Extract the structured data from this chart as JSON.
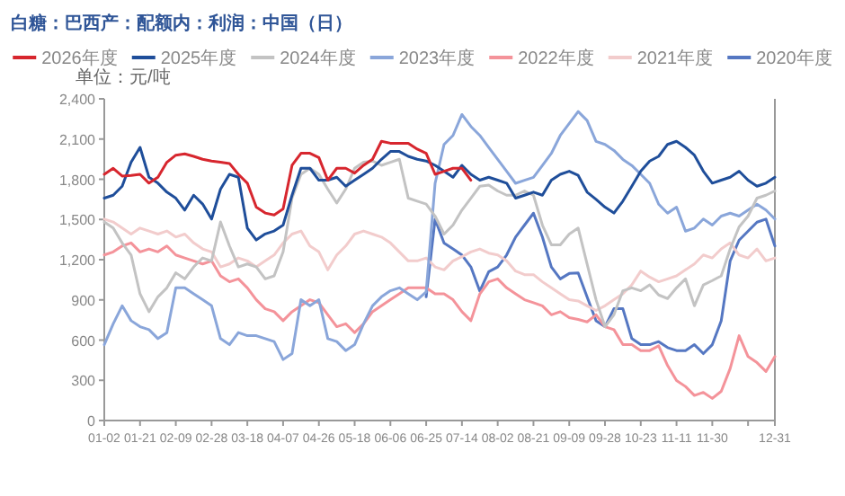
{
  "chart_data": {
    "type": "line",
    "title": "白糖：巴西产：配额内：利润：中国（日）",
    "ylabel": "单位：元/吨",
    "legend": "top",
    "categories": [
      "01-02",
      null,
      null,
      null,
      "01-21",
      null,
      null,
      null,
      "02-09",
      null,
      null,
      null,
      "02-28",
      null,
      null,
      null,
      "03-18",
      null,
      null,
      null,
      "04-07",
      null,
      null,
      null,
      "04-26",
      null,
      null,
      null,
      "05-18",
      null,
      null,
      null,
      "06-06",
      null,
      null,
      null,
      "06-25",
      null,
      null,
      null,
      "07-14",
      null,
      null,
      null,
      "08-02",
      null,
      null,
      null,
      "08-21",
      null,
      null,
      null,
      "09-09",
      null,
      null,
      null,
      "09-28",
      null,
      null,
      null,
      "10-23",
      null,
      null,
      null,
      "11-11",
      null,
      null,
      null,
      "11-30",
      null,
      null,
      null,
      null,
      null,
      null,
      "12-31"
    ],
    "ylim": [
      0,
      2400
    ],
    "yticks": [
      0,
      300,
      600,
      900,
      {
        "value": 1200,
        "label": "1,200"
      },
      {
        "value": 1500,
        "label": "1,500"
      },
      {
        "value": 1800,
        "label": "1,800"
      },
      {
        "value": 2100,
        "label": "2,100"
      },
      {
        "value": 2400,
        "label": "2,400"
      }
    ],
    "series": [
      {
        "name": "2026年度",
        "color": "#d7262e",
        "values": [
          1837,
          1882,
          1824,
          1829,
          1837,
          1771,
          1815,
          1927,
          1980,
          1989,
          1971,
          1949,
          1936,
          1927,
          1918,
          1837,
          1771,
          1592,
          1548,
          1534,
          1579,
          1904,
          1994,
          1994,
          1962,
          1793,
          1882,
          1882,
          1846,
          1904,
          1949,
          2083,
          2069,
          2069,
          2069,
          2025,
          1994,
          1837,
          1860,
          1882,
          1882,
          1793,
          null,
          null,
          null,
          null,
          null,
          null,
          null,
          null,
          null,
          null,
          null,
          null,
          null,
          null,
          null,
          null,
          null,
          null,
          null,
          null,
          null,
          null,
          null,
          null,
          null,
          null,
          null,
          null,
          null,
          null,
          null,
          null,
          null,
          null
        ]
      },
      {
        "name": "2025年度",
        "color": "#1f4e9a",
        "values": [
          1659,
          1681,
          1748,
          1927,
          2038,
          1815,
          1771,
          1704,
          1659,
          1570,
          1681,
          1615,
          1503,
          1726,
          1837,
          1815,
          1436,
          1347,
          1392,
          1414,
          1458,
          1681,
          1882,
          1882,
          1793,
          1793,
          1815,
          1748,
          1793,
          1837,
          1882,
          1949,
          2007,
          2007,
          1971,
          1949,
          1936,
          1904,
          1860,
          1815,
          1904,
          1837,
          1793,
          1815,
          1793,
          1771,
          1659,
          1681,
          1704,
          1681,
          1793,
          1837,
          1860,
          1829,
          1704,
          1650,
          1592,
          1548,
          1637,
          1748,
          1860,
          1936,
          1971,
          2060,
          2083,
          2038,
          1980,
          1860,
          1771,
          1793,
          1815,
          1860,
          1793,
          1748,
          1771,
          1815
        ]
      },
      {
        "name": "2024年度",
        "color": "#c3c3c3",
        "values": [
          1481,
          1436,
          1325,
          1235,
          945,
          812,
          923,
          990,
          1102,
          1057,
          1146,
          1213,
          1191,
          1481,
          1302,
          1146,
          1168,
          1146,
          1057,
          1079,
          1258,
          1659,
          1837,
          1882,
          1837,
          1726,
          1623,
          1726,
          1882,
          1927,
          1936,
          1904,
          1927,
          1949,
          1659,
          1637,
          1615,
          1525,
          1391,
          1458,
          1570,
          1659,
          1748,
          1757,
          1713,
          1681,
          1681,
          1713,
          1681,
          1458,
          1311,
          1311,
          1391,
          1436,
          1168,
          901,
          700,
          789,
          968,
          990,
          968,
          1012,
          937,
          910,
          990,
          1057,
          856,
          1012,
          1044,
          1079,
          1280,
          1445,
          1525,
          1659,
          1681,
          1713
        ]
      },
      {
        "name": "2023年度",
        "color": "#8aa6da",
        "values": [
          566,
          722,
          856,
          745,
          700,
          678,
          611,
          656,
          990,
          990,
          945,
          901,
          856,
          611,
          566,
          656,
          633,
          633,
          611,
          589,
          455,
          500,
          901,
          856,
          901,
          611,
          589,
          522,
          566,
          722,
          856,
          923,
          968,
          990,
          945,
          901,
          960,
          1770,
          2060,
          2127,
          2283,
          2194,
          2127,
          2037,
          1948,
          1859,
          1770,
          1792,
          1814,
          1903,
          1993,
          2127,
          2216,
          2305,
          2238,
          2082,
          2060,
          2015,
          1948,
          1903,
          1837,
          1770,
          1614,
          1547,
          1592,
          1413,
          1436,
          1503,
          1458,
          1525,
          1547,
          1525,
          1570,
          1614,
          1570,
          1503
        ]
      },
      {
        "name": "2022年度",
        "color": "#f4939a",
        "values": [
          1235,
          1258,
          1302,
          1325,
          1258,
          1280,
          1258,
          1302,
          1235,
          1213,
          1191,
          1168,
          1191,
          1079,
          1035,
          1057,
          990,
          901,
          834,
          812,
          745,
          812,
          856,
          901,
          879,
          789,
          700,
          722,
          656,
          722,
          812,
          856,
          901,
          945,
          990,
          990,
          990,
          945,
          945,
          901,
          812,
          745,
          945,
          1035,
          1057,
          990,
          945,
          901,
          879,
          856,
          789,
          812,
          767,
          754,
          736,
          789,
          700,
          678,
          566,
          566,
          522,
          522,
          557,
          410,
          299,
          254,
          187,
          210,
          165,
          218,
          388,
          633,
          477,
          432,
          366,
          477
        ]
      },
      {
        "name": "2021年度",
        "color": "#f2cccc",
        "values": [
          1503,
          1481,
          1436,
          1391,
          1436,
          1414,
          1391,
          1414,
          1369,
          1391,
          1325,
          1280,
          1258,
          1146,
          1168,
          1213,
          1191,
          1146,
          1191,
          1235,
          1325,
          1391,
          1414,
          1302,
          1258,
          1124,
          1235,
          1302,
          1391,
          1414,
          1391,
          1369,
          1325,
          1258,
          1191,
          1191,
          1213,
          1146,
          1124,
          1191,
          1222,
          1258,
          1280,
          1249,
          1235,
          1191,
          1115,
          1088,
          1088,
          1035,
          990,
          945,
          901,
          892,
          856,
          821,
          856,
          901,
          945,
          1012,
          1115,
          1070,
          1035,
          1057,
          1079,
          1124,
          1168,
          1235,
          1213,
          1280,
          1325,
          1235,
          1213,
          1280,
          1191,
          1213
        ]
      },
      {
        "name": "2020年度",
        "color": "#5577c2",
        "values": [
          null,
          null,
          null,
          null,
          null,
          null,
          null,
          null,
          null,
          null,
          null,
          null,
          null,
          null,
          null,
          null,
          null,
          null,
          null,
          null,
          null,
          null,
          null,
          null,
          null,
          null,
          null,
          null,
          null,
          null,
          null,
          null,
          null,
          null,
          null,
          null,
          923,
          1502,
          1324,
          1280,
          1235,
          1146,
          966,
          1110,
          1146,
          1235,
          1369,
          1458,
          1547,
          1369,
          1146,
          1057,
          1097,
          1101,
          922,
          744,
          700,
          834,
          834,
          611,
          566,
          566,
          589,
          544,
          522,
          522,
          566,
          499,
          566,
          744,
          1191,
          1346,
          1413,
          1480,
          1503,
          1302
        ]
      }
    ]
  }
}
